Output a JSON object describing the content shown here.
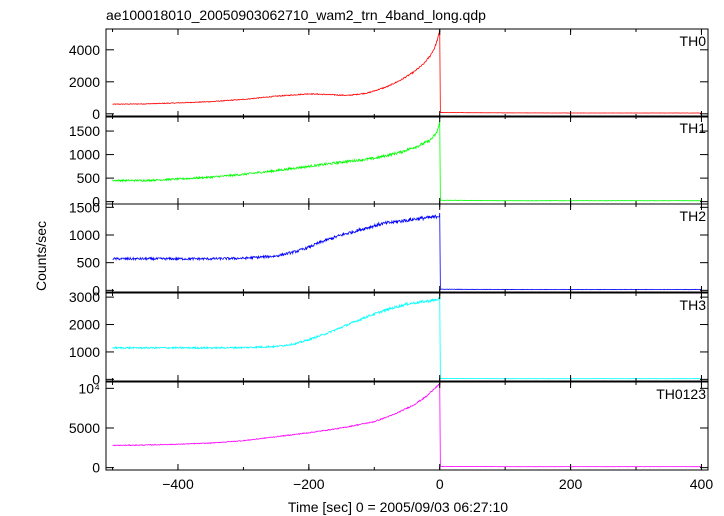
{
  "chart_data": {
    "type": "line",
    "title": "ae100018010_20050903062710_wam2_trn_4band_long.qdp",
    "xlabel": "Time [sec] 0 = 2005/09/03 06:27:10",
    "ylabel": "Counts/sec",
    "xlim": [
      -510,
      410
    ],
    "x_ticks": [
      -400,
      -200,
      0,
      200,
      400
    ],
    "x_tick_labels": [
      "−400",
      "−200",
      "0",
      "200",
      "400"
    ],
    "grid": false,
    "legend": "none",
    "panels": [
      {
        "name": "TH0",
        "color": "#ff0000",
        "ylim": [
          -200,
          5300
        ],
        "yticks": [
          0,
          2000,
          4000
        ],
        "ytick_labels": [
          "0",
          "2000",
          "4000"
        ],
        "x": [
          -500,
          -450,
          -400,
          -350,
          -300,
          -250,
          -200,
          -170,
          -140,
          -110,
          -80,
          -60,
          -40,
          -25,
          -15,
          -8,
          -3,
          -0.5,
          0,
          1,
          100,
          200,
          300,
          400
        ],
        "y": [
          600,
          620,
          680,
          760,
          900,
          1100,
          1250,
          1200,
          1150,
          1300,
          1700,
          2100,
          2600,
          3100,
          3600,
          4100,
          4700,
          5100,
          5200,
          80,
          60,
          50,
          50,
          50
        ]
      },
      {
        "name": "TH1",
        "color": "#00ff00",
        "ylim": [
          -50,
          1820
        ],
        "yticks": [
          0,
          500,
          1000,
          1500
        ],
        "ytick_labels": [
          "0",
          "500",
          "1000",
          "1500"
        ],
        "x": [
          -500,
          -450,
          -400,
          -350,
          -300,
          -250,
          -200,
          -150,
          -100,
          -60,
          -30,
          -15,
          -5,
          -0.5,
          0,
          1,
          100,
          200,
          300,
          400
        ],
        "y": [
          450,
          450,
          480,
          520,
          580,
          660,
          750,
          840,
          920,
          1050,
          1200,
          1300,
          1450,
          1650,
          1700,
          30,
          20,
          20,
          20,
          20
        ]
      },
      {
        "name": "TH2",
        "color": "#0000ff",
        "ylim": [
          -30,
          1560
        ],
        "yticks": [
          0,
          500,
          1000,
          1500
        ],
        "ytick_labels": [
          "0",
          "500",
          "1000",
          "1500"
        ],
        "x": [
          -500,
          -450,
          -400,
          -350,
          -300,
          -250,
          -220,
          -200,
          -180,
          -150,
          -120,
          -90,
          -60,
          -30,
          -10,
          -0.5,
          0,
          1,
          100,
          200,
          300,
          400
        ],
        "y": [
          570,
          570,
          570,
          570,
          580,
          620,
          700,
          780,
          880,
          1000,
          1100,
          1200,
          1250,
          1300,
          1320,
          1350,
          1400,
          20,
          15,
          15,
          15,
          15
        ]
      },
      {
        "name": "TH3",
        "color": "#00ffff",
        "ylim": [
          -60,
          3150
        ],
        "yticks": [
          0,
          1000,
          2000,
          3000
        ],
        "ytick_labels": [
          "0",
          "1000",
          "2000",
          "3000"
        ],
        "x": [
          -500,
          -450,
          -400,
          -350,
          -300,
          -250,
          -220,
          -200,
          -170,
          -140,
          -110,
          -80,
          -50,
          -20,
          -5,
          -0.5,
          0,
          1,
          100,
          200,
          300,
          400
        ],
        "y": [
          1150,
          1150,
          1150,
          1150,
          1160,
          1200,
          1300,
          1450,
          1700,
          2000,
          2300,
          2550,
          2750,
          2850,
          2900,
          2950,
          3000,
          30,
          25,
          25,
          25,
          25
        ]
      },
      {
        "name": "TH0123",
        "color": "#ff00ff",
        "ylim": [
          -300,
          10800
        ],
        "yticks": [
          0,
          5000,
          10000
        ],
        "ytick_labels": [
          "0",
          "5000",
          "10⁴"
        ],
        "x": [
          -500,
          -450,
          -400,
          -350,
          -300,
          -250,
          -200,
          -150,
          -100,
          -70,
          -40,
          -20,
          -8,
          -0.5,
          0,
          1,
          100,
          200,
          300,
          400
        ],
        "y": [
          2800,
          2850,
          2950,
          3100,
          3400,
          3900,
          4400,
          5000,
          5800,
          6700,
          7900,
          9000,
          10000,
          10500,
          10600,
          150,
          120,
          120,
          120,
          120
        ]
      }
    ]
  }
}
